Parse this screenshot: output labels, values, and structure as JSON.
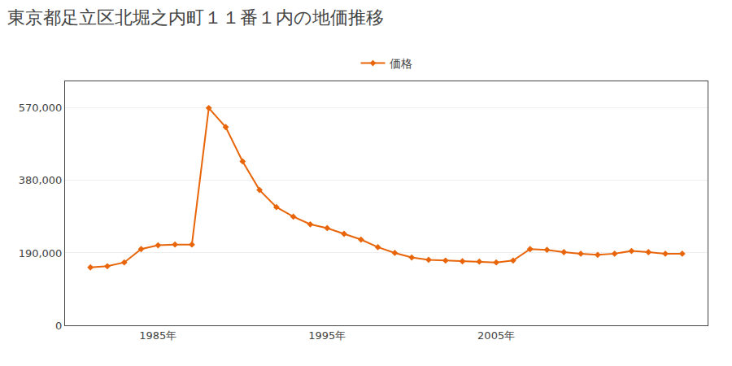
{
  "chart_data": {
    "type": "line",
    "title": "東京都足立区北堀之内町１１番１内の地価推移",
    "x": [
      1981,
      1982,
      1983,
      1984,
      1985,
      1986,
      1987,
      1988,
      1989,
      1990,
      1991,
      1992,
      1993,
      1994,
      1995,
      1996,
      1997,
      1998,
      1999,
      2000,
      2001,
      2002,
      2003,
      2004,
      2005,
      2006,
      2007,
      2008,
      2009,
      2010,
      2011,
      2012,
      2013,
      2014,
      2015,
      2016
    ],
    "series": [
      {
        "name": "価格",
        "color": "#E8650A",
        "marker": "diamond",
        "values": [
          152000,
          155000,
          165000,
          200000,
          210000,
          212000,
          212000,
          570000,
          520000,
          430000,
          355000,
          310000,
          285000,
          265000,
          255000,
          240000,
          225000,
          205000,
          190000,
          178000,
          172000,
          170000,
          168000,
          167000,
          165000,
          170000,
          200000,
          198000,
          192000,
          188000,
          185000,
          188000,
          195000,
          192000,
          188000,
          188000
        ]
      }
    ],
    "xlim": [
      1979.5,
      2017.5
    ],
    "xticks": [
      {
        "value": 1985,
        "label": "1985年"
      },
      {
        "value": 1995,
        "label": "1995年"
      },
      {
        "value": 2005,
        "label": "2005年"
      }
    ],
    "ylim": [
      0,
      640000
    ],
    "yticks": [
      0,
      {
        "value": 190000,
        "label": "190,000"
      },
      {
        "value": 380000,
        "label": "380,000"
      },
      {
        "value": 570000,
        "label": "570,000"
      }
    ],
    "grid": "y",
    "legend": "top"
  }
}
